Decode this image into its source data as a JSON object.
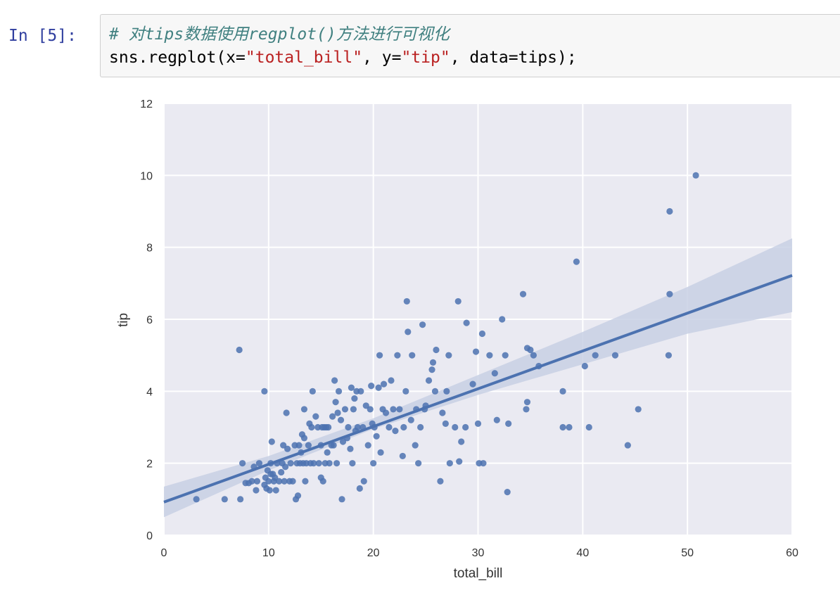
{
  "cell": {
    "prompt": "In [5]:",
    "comment": "# 对tips数据使用regplot()方法进行可视化",
    "code_pre1": "sns.regplot(x=",
    "code_str1": "\"total_bill\"",
    "code_mid": ", y=",
    "code_str2": "\"tip\"",
    "code_post": ", data=tips);"
  },
  "colors": {
    "points": "#4c72b0",
    "line": "#4c72b0",
    "ci_band": "#c8d0e4",
    "plot_bg": "#eaeaf2",
    "grid": "#ffffff"
  },
  "chart_data": {
    "type": "scatter",
    "xlabel": "total_bill",
    "ylabel": "tip",
    "xlim": [
      0,
      60
    ],
    "ylim": [
      0,
      12
    ],
    "xticks": [
      0,
      10,
      20,
      30,
      40,
      50,
      60
    ],
    "yticks": [
      0,
      2,
      4,
      6,
      8,
      10,
      12
    ],
    "grid": true,
    "regression": {
      "intercept": 0.92,
      "slope": 0.105,
      "ci": [
        [
          0,
          0.5,
          1.35
        ],
        [
          10,
          1.8,
          2.2
        ],
        [
          20,
          2.95,
          3.25
        ],
        [
          30,
          3.9,
          4.45
        ],
        [
          40,
          4.75,
          5.65
        ],
        [
          50,
          5.6,
          6.9
        ],
        [
          60,
          6.2,
          8.25
        ]
      ]
    },
    "points": [
      [
        3.1,
        1.0
      ],
      [
        5.8,
        1.0
      ],
      [
        7.3,
        1.0
      ],
      [
        7.2,
        5.15
      ],
      [
        7.5,
        2.0
      ],
      [
        7.8,
        1.45
      ],
      [
        8.1,
        1.45
      ],
      [
        8.4,
        1.5
      ],
      [
        8.6,
        1.9
      ],
      [
        8.8,
        1.25
      ],
      [
        8.9,
        1.5
      ],
      [
        9.1,
        2.0
      ],
      [
        9.6,
        4.0
      ],
      [
        9.6,
        1.4
      ],
      [
        9.7,
        1.6
      ],
      [
        9.8,
        1.3
      ],
      [
        9.9,
        1.8
      ],
      [
        10.0,
        1.5
      ],
      [
        10.1,
        1.25
      ],
      [
        10.2,
        1.7
      ],
      [
        10.2,
        2.0
      ],
      [
        10.3,
        2.6
      ],
      [
        10.4,
        1.7
      ],
      [
        10.5,
        1.5
      ],
      [
        10.6,
        1.6
      ],
      [
        10.7,
        1.25
      ],
      [
        10.8,
        2.0
      ],
      [
        11.0,
        1.5
      ],
      [
        11.2,
        1.75
      ],
      [
        11.3,
        2.0
      ],
      [
        11.4,
        2.5
      ],
      [
        11.5,
        1.5
      ],
      [
        11.6,
        1.9
      ],
      [
        11.7,
        3.4
      ],
      [
        11.8,
        2.4
      ],
      [
        12.0,
        1.5
      ],
      [
        12.1,
        2.0
      ],
      [
        12.3,
        1.5
      ],
      [
        12.5,
        2.5
      ],
      [
        12.6,
        1.0
      ],
      [
        12.7,
        2.0
      ],
      [
        12.8,
        1.1
      ],
      [
        12.9,
        2.5
      ],
      [
        13.0,
        2.0
      ],
      [
        13.1,
        2.3
      ],
      [
        13.2,
        2.8
      ],
      [
        13.3,
        2.0
      ],
      [
        13.4,
        2.7
      ],
      [
        13.4,
        3.5
      ],
      [
        13.5,
        1.5
      ],
      [
        13.6,
        2.0
      ],
      [
        13.8,
        2.5
      ],
      [
        13.9,
        3.1
      ],
      [
        14.0,
        2.0
      ],
      [
        14.1,
        3.0
      ],
      [
        14.2,
        4.0
      ],
      [
        14.3,
        2.0
      ],
      [
        14.5,
        3.3
      ],
      [
        14.7,
        3.0
      ],
      [
        14.8,
        2.0
      ],
      [
        15.0,
        1.6
      ],
      [
        15.0,
        2.5
      ],
      [
        15.1,
        3.0
      ],
      [
        15.2,
        1.5
      ],
      [
        15.3,
        3.0
      ],
      [
        15.4,
        2.0
      ],
      [
        15.5,
        3.0
      ],
      [
        15.6,
        2.3
      ],
      [
        15.7,
        3.0
      ],
      [
        15.8,
        2.0
      ],
      [
        16.0,
        2.5
      ],
      [
        16.1,
        3.3
      ],
      [
        16.2,
        2.5
      ],
      [
        16.3,
        4.3
      ],
      [
        16.4,
        3.7
      ],
      [
        16.5,
        2.0
      ],
      [
        16.6,
        3.4
      ],
      [
        16.7,
        4.0
      ],
      [
        16.9,
        3.2
      ],
      [
        17.0,
        1.0
      ],
      [
        17.1,
        2.6
      ],
      [
        17.3,
        3.5
      ],
      [
        17.5,
        2.7
      ],
      [
        17.6,
        3.0
      ],
      [
        17.8,
        2.4
      ],
      [
        17.9,
        4.1
      ],
      [
        18.0,
        2.0
      ],
      [
        18.1,
        3.5
      ],
      [
        18.2,
        3.8
      ],
      [
        18.3,
        2.9
      ],
      [
        18.4,
        4.0
      ],
      [
        18.5,
        3.0
      ],
      [
        18.7,
        1.3
      ],
      [
        18.8,
        4.0
      ],
      [
        19.0,
        3.0
      ],
      [
        19.1,
        1.5
      ],
      [
        19.3,
        3.6
      ],
      [
        19.5,
        2.5
      ],
      [
        19.7,
        3.5
      ],
      [
        19.8,
        4.15
      ],
      [
        19.9,
        3.1
      ],
      [
        20.0,
        2.0
      ],
      [
        20.1,
        3.0
      ],
      [
        20.3,
        2.75
      ],
      [
        20.5,
        4.1
      ],
      [
        20.6,
        5.0
      ],
      [
        20.7,
        2.3
      ],
      [
        20.9,
        3.5
      ],
      [
        21.0,
        4.2
      ],
      [
        21.2,
        3.4
      ],
      [
        21.5,
        3.0
      ],
      [
        21.7,
        4.3
      ],
      [
        21.9,
        3.5
      ],
      [
        22.1,
        2.9
      ],
      [
        22.3,
        5.0
      ],
      [
        22.5,
        3.5
      ],
      [
        22.8,
        2.2
      ],
      [
        22.9,
        3.0
      ],
      [
        23.1,
        4.0
      ],
      [
        23.2,
        6.5
      ],
      [
        23.3,
        5.65
      ],
      [
        23.6,
        3.2
      ],
      [
        23.7,
        5.0
      ],
      [
        24.0,
        2.5
      ],
      [
        24.1,
        3.5
      ],
      [
        24.3,
        2.0
      ],
      [
        24.5,
        3.0
      ],
      [
        24.7,
        5.85
      ],
      [
        24.9,
        3.5
      ],
      [
        25.0,
        3.6
      ],
      [
        25.3,
        4.3
      ],
      [
        25.6,
        4.6
      ],
      [
        25.7,
        4.8
      ],
      [
        25.9,
        4.0
      ],
      [
        26.0,
        5.15
      ],
      [
        26.4,
        1.5
      ],
      [
        26.6,
        3.4
      ],
      [
        26.9,
        3.1
      ],
      [
        27.0,
        4.0
      ],
      [
        27.2,
        5.0
      ],
      [
        27.3,
        2.0
      ],
      [
        27.8,
        3.0
      ],
      [
        28.1,
        6.5
      ],
      [
        28.2,
        2.05
      ],
      [
        28.4,
        2.6
      ],
      [
        28.8,
        3.0
      ],
      [
        28.9,
        5.9
      ],
      [
        29.5,
        4.2
      ],
      [
        29.8,
        5.1
      ],
      [
        30.0,
        3.1
      ],
      [
        30.1,
        2.0
      ],
      [
        30.4,
        5.6
      ],
      [
        30.5,
        2.0
      ],
      [
        31.1,
        5.0
      ],
      [
        31.6,
        4.5
      ],
      [
        31.8,
        3.2
      ],
      [
        32.3,
        6.0
      ],
      [
        32.6,
        5.0
      ],
      [
        32.8,
        1.2
      ],
      [
        32.9,
        3.1
      ],
      [
        34.3,
        6.7
      ],
      [
        34.6,
        3.5
      ],
      [
        34.7,
        3.7
      ],
      [
        34.7,
        5.2
      ],
      [
        35.0,
        5.15
      ],
      [
        35.3,
        5.0
      ],
      [
        35.8,
        4.7
      ],
      [
        38.1,
        4.0
      ],
      [
        38.1,
        3.0
      ],
      [
        38.7,
        3.0
      ],
      [
        39.4,
        7.6
      ],
      [
        40.2,
        4.7
      ],
      [
        40.6,
        3.0
      ],
      [
        41.2,
        5.0
      ],
      [
        43.1,
        5.0
      ],
      [
        44.3,
        2.5
      ],
      [
        45.3,
        3.5
      ],
      [
        48.2,
        5.0
      ],
      [
        48.3,
        6.7
      ],
      [
        48.3,
        9.0
      ],
      [
        50.8,
        10.0
      ]
    ]
  }
}
